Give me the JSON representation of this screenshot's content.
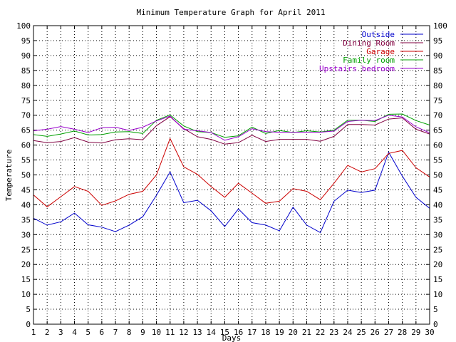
{
  "chart_data": {
    "type": "line",
    "title": "Minimum Temperature Graph for April 2011",
    "xlabel": "Days",
    "ylabel": "Temperature",
    "xlim": [
      1,
      30
    ],
    "ylim": [
      0,
      100
    ],
    "grid": true,
    "legend_position": "top-right",
    "x_ticks": [
      1,
      2,
      3,
      4,
      5,
      6,
      7,
      8,
      9,
      10,
      11,
      12,
      13,
      14,
      15,
      16,
      17,
      18,
      19,
      20,
      21,
      22,
      23,
      24,
      25,
      26,
      27,
      28,
      29,
      30
    ],
    "y_ticks": [
      0,
      5,
      10,
      15,
      20,
      25,
      30,
      35,
      40,
      45,
      50,
      55,
      60,
      65,
      70,
      75,
      80,
      85,
      90,
      95,
      100
    ],
    "x": [
      1,
      2,
      3,
      4,
      5,
      6,
      7,
      8,
      9,
      10,
      11,
      12,
      13,
      14,
      15,
      16,
      17,
      18,
      19,
      20,
      21,
      22,
      23,
      24,
      25,
      26,
      27,
      28,
      29,
      30
    ],
    "series": [
      {
        "name": "Outside",
        "color": "#0000cc",
        "values": [
          35.5,
          33.2,
          34.3,
          37.2,
          33.3,
          32.5,
          31.0,
          33.2,
          36.0,
          43.2,
          51.0,
          40.7,
          41.5,
          38.0,
          32.7,
          38.6,
          34.0,
          33.2,
          31.3,
          39.2,
          33.2,
          30.7,
          41.2,
          44.9,
          44.1,
          44.9,
          57.6,
          49.6,
          42.5,
          38.8
        ]
      },
      {
        "name": "Dining Room",
        "color": "#800040",
        "values": [
          61.5,
          60.8,
          61.2,
          62.5,
          61.0,
          60.7,
          61.8,
          62.1,
          61.8,
          66.5,
          69.5,
          65.5,
          62.8,
          61.9,
          60.3,
          60.8,
          63.3,
          61.2,
          61.9,
          61.9,
          61.9,
          61.3,
          62.9,
          66.9,
          66.9,
          66.7,
          68.7,
          69.1,
          65.3,
          63.7
        ]
      },
      {
        "name": "Garage",
        "color": "#cc0000",
        "values": [
          43.3,
          39.3,
          42.7,
          46.1,
          44.5,
          39.8,
          41.3,
          43.5,
          44.5,
          50.0,
          62.2,
          52.7,
          50.2,
          46.1,
          42.5,
          47.2,
          43.9,
          40.5,
          41.2,
          45.4,
          44.5,
          41.7,
          47.2,
          53.2,
          51.0,
          52.1,
          57.2,
          58.2,
          52.4,
          49.3
        ]
      },
      {
        "name": "Family room",
        "color": "#00a000",
        "values": [
          63.5,
          62.9,
          63.7,
          64.7,
          63.4,
          63.5,
          64.4,
          64.5,
          63.9,
          68.3,
          70.1,
          66.4,
          64.5,
          64.2,
          62.6,
          63.1,
          66.0,
          63.9,
          64.9,
          64.2,
          64.8,
          64.4,
          65.0,
          68.3,
          68.3,
          67.9,
          70.3,
          70.4,
          68.2,
          66.7
        ]
      },
      {
        "name": "Upstairs bedroom",
        "color": "#9900cc",
        "values": [
          64.8,
          65.3,
          66.2,
          65.3,
          64.2,
          65.8,
          66.0,
          64.9,
          66.0,
          68.1,
          69.7,
          65.3,
          64.8,
          64.2,
          61.6,
          62.8,
          65.5,
          64.5,
          64.3,
          64.3,
          64.3,
          64.3,
          64.7,
          67.9,
          68.3,
          68.2,
          70.0,
          69.4,
          66.1,
          64.1
        ]
      }
    ]
  }
}
